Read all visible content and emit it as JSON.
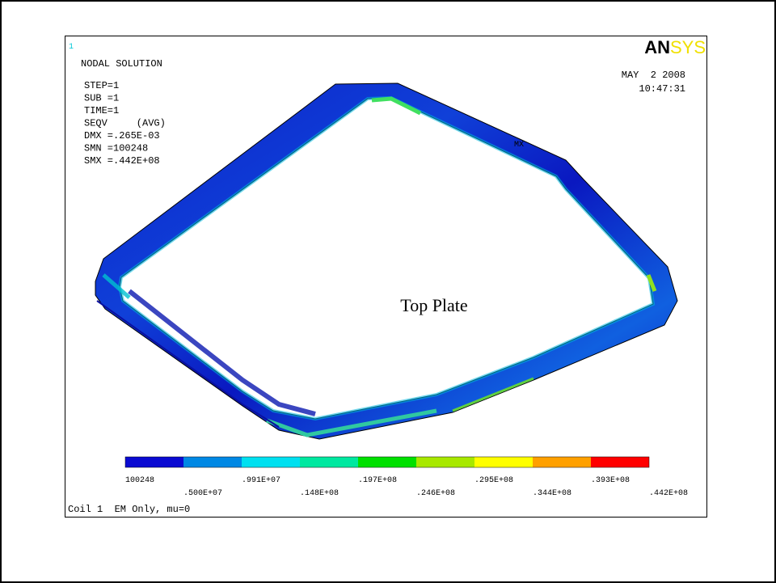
{
  "window_number": "1",
  "header": {
    "title": "NODAL SOLUTION",
    "info": [
      "STEP=1",
      "SUB =1",
      "TIME=1",
      "SEQV     (AVG)",
      "DMX =.265E-03",
      "SMN =100248",
      "SMX =.442E+08"
    ],
    "date": "MAY  2 2008",
    "time": "10:47:31",
    "logo": {
      "dark": "AN",
      "light": "SYS"
    }
  },
  "plot_label": "Top Plate",
  "mx_label": "MX",
  "legend": {
    "labels": [
      "100248",
      ".500E+07",
      ".991E+07",
      ".148E+08",
      ".197E+08",
      ".246E+08",
      ".295E+08",
      ".344E+08",
      ".393E+08",
      ".442E+08"
    ],
    "colors": [
      "#0a0ad2",
      "#0088e4",
      "#00e0f0",
      "#00e8a0",
      "#00e000",
      "#a8e800",
      "#ffff00",
      "#ffa000",
      "#ff0000"
    ]
  },
  "footer": "Coil 1  EM Only, mu=0"
}
